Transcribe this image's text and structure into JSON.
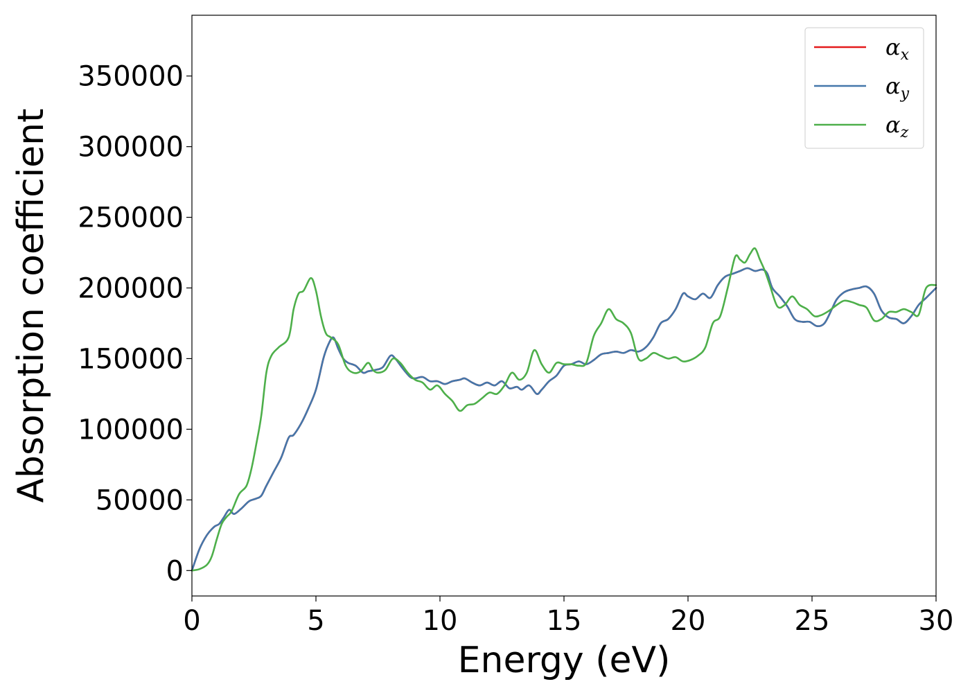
{
  "chart_data": {
    "type": "line",
    "title": "",
    "xlabel": "Energy (eV)",
    "ylabel": "Absorption coefficient",
    "xlim": [
      0,
      30
    ],
    "ylim": [
      -18000,
      393000
    ],
    "xticks": [
      0,
      5,
      10,
      15,
      20,
      25,
      30
    ],
    "yticks": [
      0,
      50000,
      100000,
      150000,
      200000,
      250000,
      300000,
      350000
    ],
    "grid": false,
    "legend_position": "top-right",
    "series": [
      {
        "name": "α_x",
        "symbol": "α",
        "subscript": "x",
        "color": "#e41a1c",
        "x": [
          0,
          0.3,
          0.6,
          0.9,
          1.1,
          1.3,
          1.5,
          1.7,
          2.0,
          2.3,
          2.6,
          2.8,
          3.0,
          3.3,
          3.6,
          3.9,
          4.1,
          4.4,
          4.7,
          5.0,
          5.3,
          5.5,
          5.7,
          5.9,
          6.1,
          6.3,
          6.6,
          6.9,
          7.1,
          7.4,
          7.7,
          8.0,
          8.2,
          8.5,
          8.8,
          9.0,
          9.3,
          9.6,
          9.9,
          10.2,
          10.5,
          10.8,
          11.0,
          11.3,
          11.6,
          11.9,
          12.2,
          12.5,
          12.8,
          13.1,
          13.3,
          13.6,
          13.9,
          14.1,
          14.4,
          14.7,
          15.0,
          15.3,
          15.6,
          15.9,
          16.2,
          16.5,
          16.8,
          17.1,
          17.4,
          17.7,
          18.0,
          18.3,
          18.6,
          18.9,
          19.2,
          19.5,
          19.8,
          20.0,
          20.3,
          20.6,
          20.9,
          21.2,
          21.5,
          21.8,
          22.1,
          22.4,
          22.7,
          23.0,
          23.2,
          23.4,
          23.7,
          24.0,
          24.3,
          24.6,
          24.9,
          25.2,
          25.5,
          25.8,
          26.0,
          26.3,
          26.6,
          26.9,
          27.2,
          27.5,
          27.8,
          28.1,
          28.4,
          28.7,
          29.0,
          29.3,
          29.6,
          30.0
        ],
        "y": [
          0,
          15000,
          25000,
          31000,
          33000,
          38000,
          43000,
          40000,
          44000,
          49000,
          51000,
          53000,
          60000,
          70000,
          80000,
          94000,
          96000,
          104000,
          115000,
          128000,
          150000,
          160000,
          165000,
          157000,
          150000,
          147000,
          145000,
          140000,
          141000,
          142000,
          144000,
          152000,
          150000,
          143000,
          137000,
          136000,
          137000,
          134000,
          134000,
          132000,
          134000,
          135000,
          136000,
          133000,
          131000,
          133000,
          131000,
          134000,
          129000,
          130000,
          128000,
          131000,
          125000,
          128000,
          134000,
          138000,
          145000,
          146000,
          148000,
          146000,
          149000,
          153000,
          154000,
          155000,
          154000,
          156000,
          155000,
          158000,
          165000,
          175000,
          178000,
          185000,
          196000,
          194000,
          192000,
          196000,
          193000,
          202000,
          208000,
          210000,
          212000,
          214000,
          212000,
          213000,
          210000,
          200000,
          194000,
          187000,
          178000,
          176000,
          176000,
          173000,
          175000,
          185000,
          192000,
          197000,
          199000,
          200000,
          201000,
          196000,
          184000,
          179000,
          178000,
          175000,
          180000,
          188000,
          193000,
          200000
        ]
      },
      {
        "name": "α_y",
        "symbol": "α",
        "subscript": "y",
        "color": "#4477aa",
        "x": [
          0,
          0.3,
          0.6,
          0.9,
          1.1,
          1.3,
          1.5,
          1.7,
          2.0,
          2.3,
          2.6,
          2.8,
          3.0,
          3.3,
          3.6,
          3.9,
          4.1,
          4.4,
          4.7,
          5.0,
          5.3,
          5.5,
          5.7,
          5.9,
          6.1,
          6.3,
          6.6,
          6.9,
          7.1,
          7.4,
          7.7,
          8.0,
          8.2,
          8.5,
          8.8,
          9.0,
          9.3,
          9.6,
          9.9,
          10.2,
          10.5,
          10.8,
          11.0,
          11.3,
          11.6,
          11.9,
          12.2,
          12.5,
          12.8,
          13.1,
          13.3,
          13.6,
          13.9,
          14.1,
          14.4,
          14.7,
          15.0,
          15.3,
          15.6,
          15.9,
          16.2,
          16.5,
          16.8,
          17.1,
          17.4,
          17.7,
          18.0,
          18.3,
          18.6,
          18.9,
          19.2,
          19.5,
          19.8,
          20.0,
          20.3,
          20.6,
          20.9,
          21.2,
          21.5,
          21.8,
          22.1,
          22.4,
          22.7,
          23.0,
          23.2,
          23.4,
          23.7,
          24.0,
          24.3,
          24.6,
          24.9,
          25.2,
          25.5,
          25.8,
          26.0,
          26.3,
          26.6,
          26.9,
          27.2,
          27.5,
          27.8,
          28.1,
          28.4,
          28.7,
          29.0,
          29.3,
          29.6,
          30.0
        ],
        "y": [
          0,
          15000,
          25000,
          31000,
          33000,
          38000,
          43000,
          40000,
          44000,
          49000,
          51000,
          53000,
          60000,
          70000,
          80000,
          94000,
          96000,
          104000,
          115000,
          128000,
          150000,
          160000,
          165000,
          157000,
          150000,
          147000,
          145000,
          140000,
          141000,
          142000,
          144000,
          152000,
          150000,
          143000,
          137000,
          136000,
          137000,
          134000,
          134000,
          132000,
          134000,
          135000,
          136000,
          133000,
          131000,
          133000,
          131000,
          134000,
          129000,
          130000,
          128000,
          131000,
          125000,
          128000,
          134000,
          138000,
          145000,
          146000,
          148000,
          146000,
          149000,
          153000,
          154000,
          155000,
          154000,
          156000,
          155000,
          158000,
          165000,
          175000,
          178000,
          185000,
          196000,
          194000,
          192000,
          196000,
          193000,
          202000,
          208000,
          210000,
          212000,
          214000,
          212000,
          213000,
          210000,
          200000,
          194000,
          187000,
          178000,
          176000,
          176000,
          173000,
          175000,
          185000,
          192000,
          197000,
          199000,
          200000,
          201000,
          196000,
          184000,
          179000,
          178000,
          175000,
          180000,
          188000,
          193000,
          200000
        ]
      },
      {
        "name": "α_z",
        "symbol": "α",
        "subscript": "z",
        "color": "#4daf4a",
        "x": [
          0,
          0.3,
          0.6,
          0.8,
          1.0,
          1.2,
          1.4,
          1.6,
          1.9,
          2.2,
          2.4,
          2.6,
          2.8,
          3.0,
          3.2,
          3.5,
          3.9,
          4.1,
          4.3,
          4.5,
          4.8,
          5.0,
          5.2,
          5.4,
          5.6,
          5.9,
          6.2,
          6.5,
          6.8,
          7.1,
          7.3,
          7.5,
          7.8,
          8.1,
          8.4,
          8.7,
          9.0,
          9.3,
          9.6,
          9.9,
          10.2,
          10.5,
          10.8,
          11.1,
          11.4,
          11.7,
          12.0,
          12.3,
          12.6,
          12.9,
          13.2,
          13.5,
          13.8,
          14.1,
          14.4,
          14.7,
          15.0,
          15.3,
          15.6,
          15.9,
          16.2,
          16.5,
          16.8,
          17.1,
          17.4,
          17.7,
          18.0,
          18.3,
          18.6,
          18.9,
          19.2,
          19.5,
          19.8,
          20.1,
          20.4,
          20.7,
          21.0,
          21.3,
          21.6,
          21.9,
          22.1,
          22.3,
          22.5,
          22.7,
          22.9,
          23.1,
          23.3,
          23.6,
          23.9,
          24.2,
          24.5,
          24.8,
          25.1,
          25.4,
          25.7,
          26.0,
          26.3,
          26.6,
          26.9,
          27.2,
          27.5,
          27.8,
          28.1,
          28.4,
          28.7,
          29.0,
          29.3,
          29.6,
          30.0
        ],
        "y": [
          0,
          1000,
          4000,
          10000,
          22000,
          33000,
          38000,
          42000,
          54000,
          60000,
          72000,
          90000,
          110000,
          140000,
          152000,
          158000,
          165000,
          185000,
          196000,
          198000,
          207000,
          198000,
          180000,
          168000,
          165000,
          160000,
          145000,
          140000,
          141000,
          147000,
          142000,
          140000,
          142000,
          150000,
          147000,
          140000,
          135000,
          133000,
          128000,
          131000,
          125000,
          120000,
          113000,
          117000,
          118000,
          122000,
          126000,
          125000,
          131000,
          140000,
          135000,
          140000,
          156000,
          146000,
          140000,
          147000,
          146000,
          146000,
          145000,
          147000,
          166000,
          175000,
          185000,
          178000,
          175000,
          168000,
          150000,
          150000,
          154000,
          152000,
          150000,
          151000,
          148000,
          149000,
          152000,
          158000,
          175000,
          180000,
          200000,
          222000,
          220000,
          218000,
          224000,
          228000,
          220000,
          212000,
          202000,
          187000,
          188000,
          194000,
          188000,
          185000,
          180000,
          181000,
          184000,
          188000,
          191000,
          190000,
          188000,
          186000,
          177000,
          178000,
          183000,
          183000,
          185000,
          183000,
          181000,
          200000,
          202000
        ]
      }
    ]
  }
}
